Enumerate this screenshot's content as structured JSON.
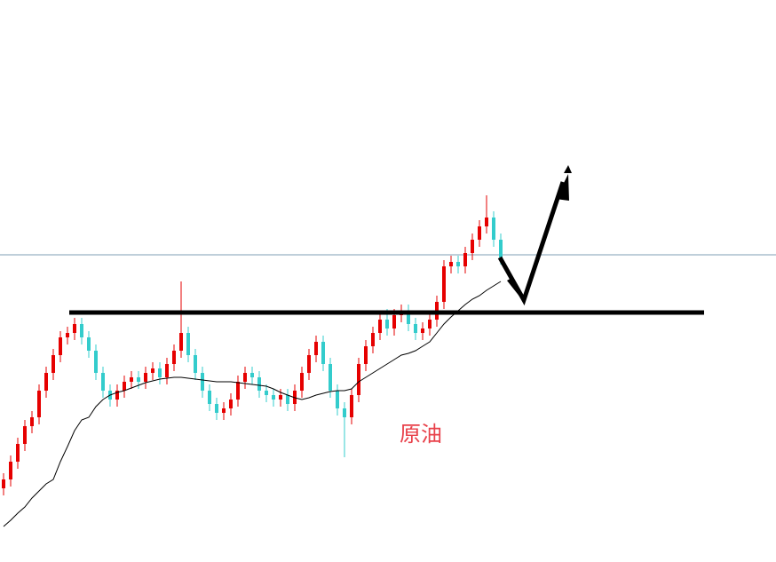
{
  "chart_data": {
    "type": "candlestick",
    "annotation": "原油",
    "ylim": [
      0,
      633
    ],
    "up_color": "#e60000",
    "down_color": "#33cccc",
    "hline": 346,
    "hline_color": "#7f9fb5",
    "support": 281,
    "support_color": "#000000",
    "open": [
      83,
      93,
      113,
      133,
      153,
      163,
      193,
      213,
      233,
      253,
      258,
      268,
      253,
      238,
      213,
      193,
      183,
      193,
      203,
      208,
      203,
      213,
      218,
      208,
      223,
      238,
      258,
      233,
      213,
      193,
      178,
      168,
      173,
      183,
      203,
      213,
      208,
      193,
      188,
      183,
      188,
      178,
      193,
      213,
      233,
      248,
      223,
      193,
      173,
      163,
      188,
      223,
      243,
      258,
      273,
      263,
      278,
      283,
      268,
      258,
      263,
      273,
      293,
      333,
      338,
      333,
      348,
      363,
      378,
      388,
      363
    ],
    "high": [
      100,
      120,
      140,
      160,
      170,
      200,
      220,
      240,
      260,
      265,
      275,
      275,
      260,
      245,
      220,
      200,
      200,
      210,
      215,
      215,
      220,
      225,
      225,
      230,
      245,
      316,
      265,
      240,
      220,
      200,
      185,
      180,
      190,
      210,
      220,
      220,
      215,
      200,
      195,
      195,
      195,
      200,
      220,
      240,
      255,
      255,
      230,
      200,
      180,
      195,
      230,
      250,
      265,
      280,
      285,
      285,
      290,
      290,
      275,
      270,
      280,
      300,
      340,
      345,
      345,
      355,
      370,
      385,
      413,
      395,
      370
    ],
    "low": [
      75,
      85,
      105,
      125,
      145,
      155,
      185,
      205,
      225,
      245,
      250,
      245,
      230,
      205,
      185,
      175,
      175,
      185,
      195,
      195,
      195,
      205,
      200,
      200,
      215,
      230,
      225,
      205,
      185,
      170,
      160,
      160,
      165,
      175,
      195,
      200,
      185,
      180,
      175,
      175,
      170,
      170,
      185,
      205,
      225,
      215,
      185,
      165,
      118,
      155,
      180,
      215,
      235,
      250,
      255,
      255,
      270,
      260,
      250,
      250,
      255,
      265,
      285,
      325,
      325,
      325,
      340,
      355,
      370,
      355,
      335
    ],
    "close": [
      93,
      113,
      133,
      153,
      163,
      193,
      213,
      233,
      253,
      258,
      268,
      253,
      238,
      213,
      193,
      183,
      193,
      203,
      208,
      203,
      213,
      218,
      208,
      223,
      238,
      258,
      233,
      213,
      193,
      178,
      168,
      173,
      183,
      203,
      213,
      208,
      193,
      188,
      183,
      188,
      178,
      193,
      213,
      233,
      248,
      223,
      193,
      173,
      163,
      188,
      223,
      243,
      258,
      273,
      263,
      278,
      283,
      268,
      258,
      263,
      273,
      293,
      333,
      338,
      333,
      348,
      363,
      378,
      388,
      363,
      343
    ],
    "ma": {
      "color": "#000000",
      "values": [
        40,
        47,
        55,
        62,
        72,
        80,
        88,
        93,
        113,
        130,
        148,
        160,
        163,
        175,
        183,
        188,
        191,
        193,
        196,
        199,
        202,
        204,
        206,
        207,
        208,
        208,
        207,
        206,
        205,
        204,
        203,
        203,
        203,
        202,
        201,
        200,
        199,
        198,
        195,
        191,
        188,
        185,
        183,
        185,
        188,
        190,
        192,
        193,
        193,
        195,
        203,
        208,
        213,
        218,
        223,
        228,
        233,
        235,
        238,
        243,
        248,
        258,
        268,
        276,
        283,
        290,
        296,
        300,
        306,
        311,
        316
      ]
    }
  }
}
